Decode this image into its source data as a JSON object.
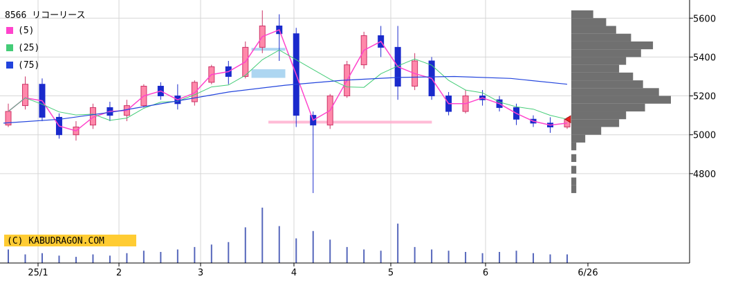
{
  "chart_data": {
    "type": "candlestick",
    "title": "8566 リコーリース",
    "watermark": "(C) KABUDRAGON.COM",
    "legend": [
      {
        "name": "(5)",
        "color": "#ff44cc"
      },
      {
        "name": "(25)",
        "color": "#44cc77"
      },
      {
        "name": "(75)",
        "color": "#2244dd"
      }
    ],
    "y_ticks": [
      5600,
      5400,
      5200,
      5000,
      4800
    ],
    "ylim": [
      4625,
      5665
    ],
    "x_ticks": [
      "25/1",
      "2",
      "3",
      "4",
      "5",
      "6",
      "6/26"
    ],
    "grid": true,
    "colors": {
      "up": "#ff88aa",
      "down": "#1a2acc",
      "ma5": "#ff44cc",
      "ma25": "#44cc77",
      "ma75": "#2244dd",
      "volume": "#5566bb",
      "profile": "#707070",
      "current_marker": "#ee2222",
      "watermark_bg": "#ffcc33"
    },
    "ohlc_weekly": [
      {
        "o": 5050,
        "h": 5160,
        "l": 5040,
        "c": 5120
      },
      {
        "o": 5150,
        "h": 5300,
        "l": 5130,
        "c": 5260
      },
      {
        "o": 5260,
        "h": 5290,
        "l": 5070,
        "c": 5090
      },
      {
        "o": 5090,
        "h": 5110,
        "l": 4980,
        "c": 5000
      },
      {
        "o": 5000,
        "h": 5070,
        "l": 4970,
        "c": 5040
      },
      {
        "o": 5050,
        "h": 5160,
        "l": 5030,
        "c": 5140
      },
      {
        "o": 5140,
        "h": 5170,
        "l": 5070,
        "c": 5100
      },
      {
        "o": 5100,
        "h": 5180,
        "l": 5070,
        "c": 5150
      },
      {
        "o": 5150,
        "h": 5260,
        "l": 5140,
        "c": 5250
      },
      {
        "o": 5250,
        "h": 5270,
        "l": 5180,
        "c": 5200
      },
      {
        "o": 5200,
        "h": 5260,
        "l": 5130,
        "c": 5160
      },
      {
        "o": 5170,
        "h": 5280,
        "l": 5150,
        "c": 5270
      },
      {
        "o": 5270,
        "h": 5360,
        "l": 5260,
        "c": 5350
      },
      {
        "o": 5350,
        "h": 5380,
        "l": 5260,
        "c": 5300
      },
      {
        "o": 5300,
        "h": 5480,
        "l": 5290,
        "c": 5450
      },
      {
        "o": 5450,
        "h": 5640,
        "l": 5420,
        "c": 5560
      },
      {
        "o": 5560,
        "h": 5620,
        "l": 5380,
        "c": 5520
      },
      {
        "o": 5520,
        "h": 5550,
        "l": 5040,
        "c": 5100
      },
      {
        "o": 5100,
        "h": 5120,
        "l": 4700,
        "c": 5050
      },
      {
        "o": 5050,
        "h": 5210,
        "l": 5030,
        "c": 5200
      },
      {
        "o": 5200,
        "h": 5380,
        "l": 5190,
        "c": 5360
      },
      {
        "o": 5360,
        "h": 5530,
        "l": 5340,
        "c": 5510
      },
      {
        "o": 5510,
        "h": 5560,
        "l": 5400,
        "c": 5450
      },
      {
        "o": 5450,
        "h": 5560,
        "l": 5180,
        "c": 5250
      },
      {
        "o": 5250,
        "h": 5420,
        "l": 5230,
        "c": 5380
      },
      {
        "o": 5380,
        "h": 5400,
        "l": 5180,
        "c": 5200
      },
      {
        "o": 5200,
        "h": 5220,
        "l": 5100,
        "c": 5120
      },
      {
        "o": 5120,
        "h": 5230,
        "l": 5110,
        "c": 5200
      },
      {
        "o": 5200,
        "h": 5230,
        "l": 5150,
        "c": 5180
      },
      {
        "o": 5180,
        "h": 5200,
        "l": 5120,
        "c": 5140
      },
      {
        "o": 5140,
        "h": 5160,
        "l": 5050,
        "c": 5080
      },
      {
        "o": 5080,
        "h": 5100,
        "l": 5040,
        "c": 5060
      },
      {
        "o": 5060,
        "h": 5090,
        "l": 5010,
        "c": 5040
      },
      {
        "o": 5040,
        "h": 5090,
        "l": 5030,
        "c": 5080
      }
    ],
    "ma75_values": [
      5060,
      5080,
      5120,
      5170,
      5220,
      5255,
      5280,
      5295,
      5300,
      5290,
      5260
    ],
    "volume_weekly": [
      22,
      14,
      16,
      12,
      10,
      14,
      12,
      16,
      20,
      18,
      22,
      26,
      30,
      34,
      58,
      90,
      60,
      40,
      52,
      38,
      26,
      22,
      20,
      64,
      26,
      22,
      20,
      18,
      16,
      18,
      20,
      16,
      14,
      14
    ],
    "volume_profile": [
      {
        "price": 5620,
        "v": 0.22
      },
      {
        "price": 5580,
        "v": 0.35
      },
      {
        "price": 5540,
        "v": 0.45
      },
      {
        "price": 5500,
        "v": 0.6
      },
      {
        "price": 5460,
        "v": 0.82
      },
      {
        "price": 5420,
        "v": 0.7
      },
      {
        "price": 5380,
        "v": 0.55
      },
      {
        "price": 5340,
        "v": 0.48
      },
      {
        "price": 5300,
        "v": 0.62
      },
      {
        "price": 5260,
        "v": 0.72
      },
      {
        "price": 5220,
        "v": 0.88
      },
      {
        "price": 5180,
        "v": 1.0
      },
      {
        "price": 5140,
        "v": 0.74
      },
      {
        "price": 5100,
        "v": 0.55
      },
      {
        "price": 5060,
        "v": 0.48
      },
      {
        "price": 5020,
        "v": 0.3
      },
      {
        "price": 4980,
        "v": 0.14
      },
      {
        "price": 4940,
        "v": 0.05
      },
      {
        "price": 4880,
        "v": 0.05
      },
      {
        "price": 4820,
        "v": 0.05
      },
      {
        "price": 4760,
        "v": 0.05
      },
      {
        "price": 4720,
        "v": 0.05
      }
    ],
    "current_price": 5080,
    "highlight_zones": [
      {
        "from_x": 0.44,
        "to_x": 0.5,
        "y_from": 5440,
        "y_to": 5440,
        "color": "#99ccee"
      },
      {
        "from_x": 0.44,
        "to_x": 0.5,
        "y_from": 5330,
        "y_to": 5300,
        "color": "#99ccee"
      },
      {
        "from_x": 0.47,
        "to_x": 0.76,
        "y_from": 5065,
        "y_to": 5065,
        "color": "#ffaacc"
      }
    ]
  }
}
